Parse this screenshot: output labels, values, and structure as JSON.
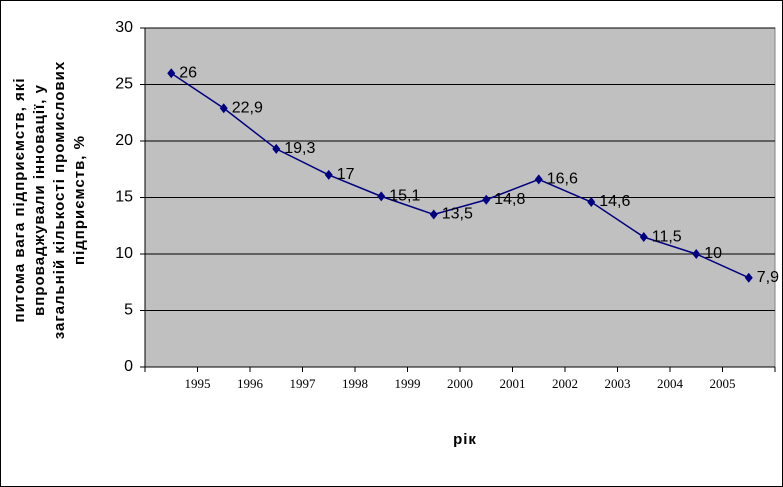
{
  "chart_data": {
    "type": "line",
    "ylabel": [
      "питома вага підприємств, які",
      "впроваджували інновації, у",
      "загальній кількості промислових",
      "підприємств, %"
    ],
    "xlabel": "рік",
    "categories": [
      "1995",
      "1996",
      "1997",
      "1998",
      "1999",
      "2000",
      "2001",
      "2002",
      "2003",
      "2004",
      "2005",
      null
    ],
    "series": [
      {
        "name": null,
        "color": "#000080",
        "values": [
          26,
          22.9,
          19.3,
          17,
          15.1,
          13.5,
          14.8,
          16.6,
          14.6,
          11.5,
          10,
          7.9
        ],
        "value_labels": [
          "26",
          "22,9",
          "19,3",
          "17",
          "15,1",
          "13,5",
          "14,8",
          "16,6",
          "14,6",
          "11,5",
          "10",
          "7,9"
        ]
      }
    ],
    "ylim": [
      0,
      30
    ],
    "yticks": [
      0,
      5,
      10,
      15,
      20,
      25,
      30
    ],
    "grid": true,
    "background": "#c0c0c0"
  }
}
